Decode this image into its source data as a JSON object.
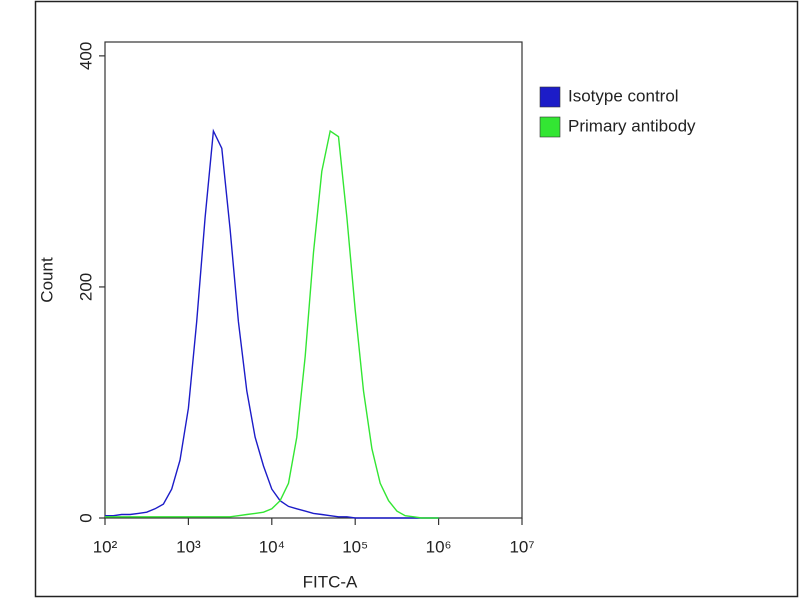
{
  "chart_data": {
    "type": "line",
    "x_label": "FITC-A",
    "y_label": "Count",
    "x": [
      100,
      126,
      158,
      200,
      251,
      316,
      398,
      501,
      631,
      794,
      1000,
      1259,
      1585,
      1995,
      2512,
      3162,
      3981,
      5012,
      6310,
      7943,
      10000,
      12589,
      15849,
      19953,
      25119,
      31623,
      39811,
      50119,
      63096,
      79433,
      100000,
      125893,
      158489,
      199526,
      251189,
      316228,
      398107,
      501187,
      630957,
      794328,
      1000000
    ],
    "series": [
      {
        "name": "Isotype control",
        "color": "#1c1cc8",
        "values": [
          2,
          2,
          3,
          3,
          4,
          5,
          8,
          12,
          25,
          50,
          95,
          170,
          260,
          335,
          320,
          250,
          170,
          110,
          70,
          45,
          25,
          15,
          10,
          8,
          6,
          4,
          3,
          2,
          1,
          1,
          0,
          0,
          0,
          0,
          0,
          0,
          0,
          0,
          0,
          0,
          0
        ]
      },
      {
        "name": "Primary antibody",
        "color": "#33e633",
        "values": [
          1,
          1,
          1,
          1,
          1,
          1,
          1,
          1,
          1,
          1,
          1,
          1,
          1,
          1,
          1,
          1,
          2,
          3,
          4,
          5,
          8,
          15,
          30,
          70,
          140,
          230,
          300,
          335,
          330,
          260,
          180,
          110,
          60,
          30,
          15,
          6,
          2,
          1,
          0,
          0,
          0
        ]
      }
    ],
    "xscale": "log",
    "xlim": [
      100,
      10000000
    ],
    "xticks": [
      {
        "value": 100,
        "label": "10²"
      },
      {
        "value": 1000,
        "label": "10³"
      },
      {
        "value": 10000,
        "label": "10⁴"
      },
      {
        "value": 100000,
        "label": "10⁵"
      },
      {
        "value": 1000000,
        "label": "10⁶"
      },
      {
        "value": 10000000,
        "label": "10⁷"
      }
    ],
    "ylim": [
      0,
      412
    ],
    "yticks": [
      0,
      200,
      400
    ],
    "legend": "right"
  }
}
